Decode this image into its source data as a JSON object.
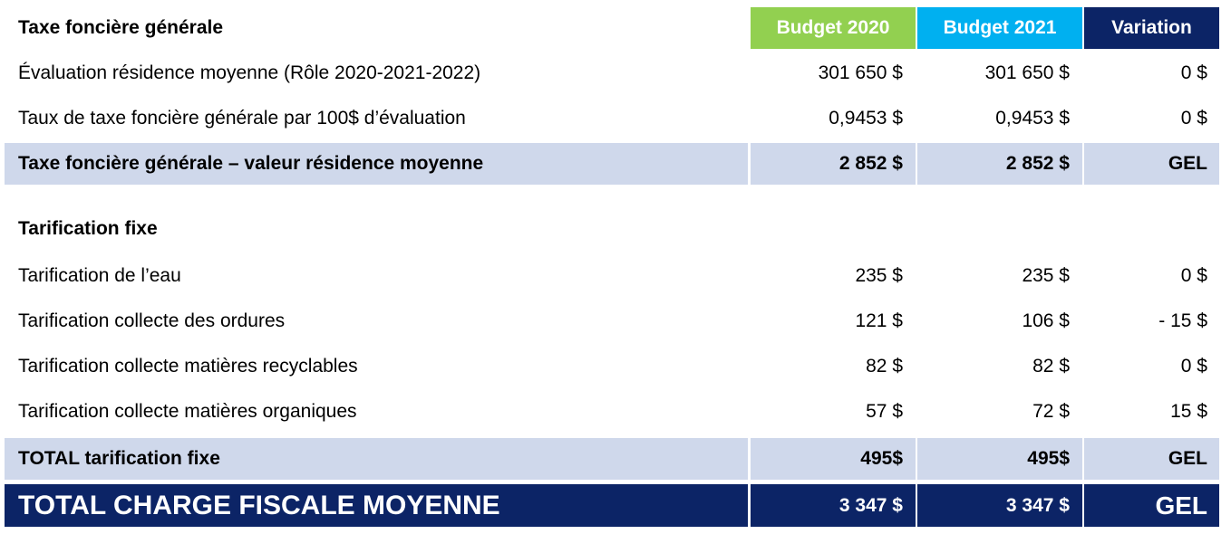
{
  "header": {
    "section_title": "Taxe foncière générale",
    "col_budget2020": "Budget 2020",
    "col_budget2021": "Budget 2021",
    "col_variation": "Variation"
  },
  "tax_rows": [
    {
      "label": "Évaluation résidence moyenne (Rôle 2020-2021-2022)",
      "b2020": "301 650 $",
      "b2021": "301 650 $",
      "variation": "0 $"
    },
    {
      "label": "Taux de taxe foncière générale par 100$ d’évaluation",
      "b2020": "0,9453 $",
      "b2021": "0,9453 $",
      "variation": "0 $"
    }
  ],
  "tax_subtotal": {
    "label": "Taxe foncière générale – valeur résidence moyenne",
    "b2020": "2 852 $",
    "b2021": "2 852 $",
    "variation": "GEL"
  },
  "fixed_section_title": "Tarification fixe",
  "fixed_rows": [
    {
      "label": "Tarification de l’eau",
      "b2020": "235 $",
      "b2021": "235 $",
      "variation": "0 $"
    },
    {
      "label": "Tarification collecte des ordures",
      "b2020": "121 $",
      "b2021": "106 $",
      "variation": "- 15 $"
    },
    {
      "label": "Tarification collecte matières recyclables",
      "b2020": "82 $",
      "b2021": "82 $",
      "variation": "0 $"
    },
    {
      "label": "Tarification collecte matières organiques",
      "b2020": "57 $",
      "b2021": "72 $",
      "variation": "15 $"
    }
  ],
  "fixed_subtotal": {
    "label": "TOTAL tarification fixe",
    "b2020": "495$",
    "b2021": "495$",
    "variation": "GEL"
  },
  "grand_total": {
    "label": "TOTAL CHARGE FISCALE MOYENNE",
    "b2020": "3 347 $",
    "b2021": "3 347 $",
    "variation": "GEL"
  },
  "colors": {
    "budget2020": "#92d050",
    "budget2021": "#00b0f0",
    "variation": "#0c2466",
    "highlight": "#cfd8eb"
  }
}
